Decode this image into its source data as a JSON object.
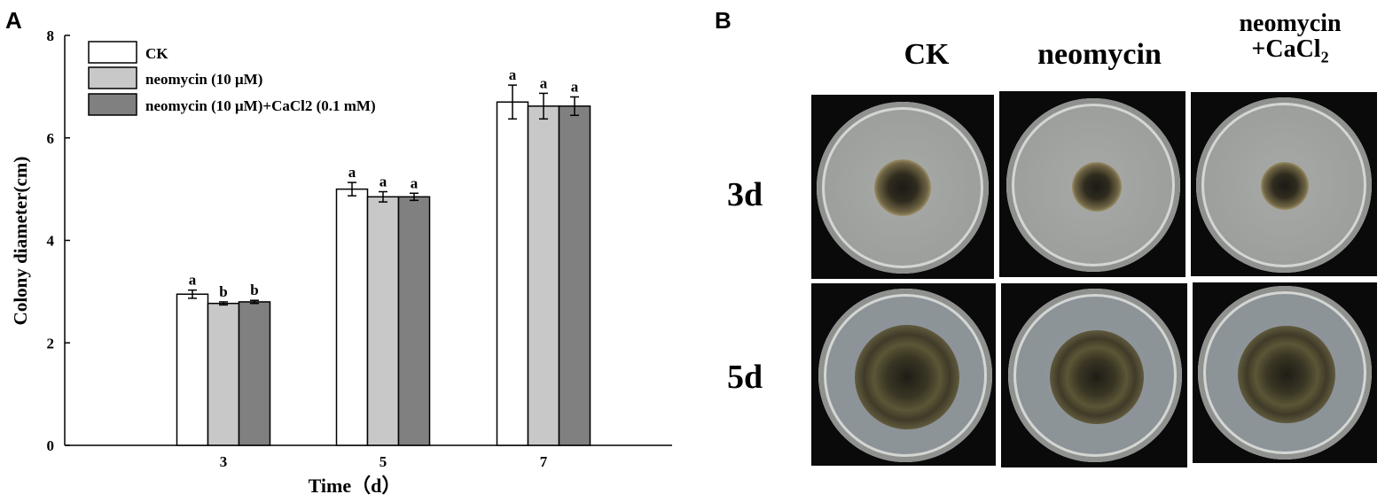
{
  "panel_a": {
    "letter": "A"
  },
  "panel_b": {
    "letter": "B",
    "columns": [
      "CK",
      "neomycin",
      "neomycin",
      "+CaCl",
      "2"
    ],
    "rows": [
      "3d",
      "5d"
    ]
  },
  "chart_data": {
    "type": "bar",
    "xlabel": "Time（d）",
    "ylabel": "Colony diameter(cm)",
    "ylim": [
      0,
      8
    ],
    "yticks": [
      "0",
      "2",
      "4",
      "6",
      "8"
    ],
    "categories": [
      "3",
      "5",
      "7"
    ],
    "legend_placement": "top-left",
    "series": [
      {
        "name": "CK",
        "color": "#ffffff",
        "values": [
          2.95,
          5.0,
          6.7
        ],
        "errors": [
          0.08,
          0.13,
          0.33
        ],
        "letters": [
          "a",
          "a",
          "a"
        ]
      },
      {
        "name": "neomycin (10 μM)",
        "color": "#c8c8c8",
        "values": [
          2.77,
          4.85,
          6.62
        ],
        "errors": [
          0.03,
          0.1,
          0.25
        ],
        "letters": [
          "b",
          "a",
          "a"
        ]
      },
      {
        "name": "neomycin (10 μM)+CaCl2 (0.1 mM)",
        "color": "#808080",
        "values": [
          2.8,
          4.85,
          6.62
        ],
        "errors": [
          0.03,
          0.07,
          0.18
        ],
        "letters": [
          "b",
          "a",
          "a"
        ]
      }
    ]
  }
}
